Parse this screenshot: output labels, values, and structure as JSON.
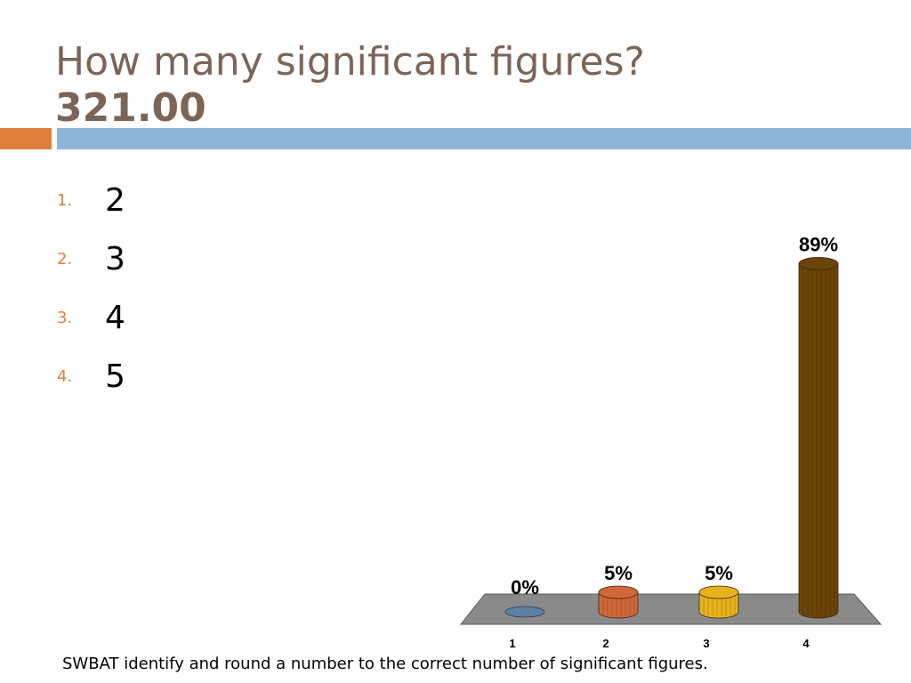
{
  "slide": {
    "title_line1": "How many significant figures?",
    "title_line2": "321.00",
    "options": [
      {
        "num": "1.",
        "value": "2"
      },
      {
        "num": "2.",
        "value": "3"
      },
      {
        "num": "3.",
        "value": "4"
      },
      {
        "num": "4.",
        "value": "5"
      }
    ],
    "footer": "SWBAT identify and round a number to the correct number of significant figures."
  },
  "colors": {
    "title": "#7a6557",
    "accent_orange": "#e07f3c",
    "accent_blue": "#8fb5d6",
    "bar1": "#5d7fa3",
    "bar2": "#d0673a",
    "bar3": "#e8b21c",
    "bar4": "#6b4408",
    "floor": "#8a8a8a"
  },
  "chart_data": {
    "type": "bar",
    "categories": [
      "1",
      "2",
      "3",
      "4"
    ],
    "values": [
      0,
      5,
      5,
      89
    ],
    "labels": [
      "0%",
      "5%",
      "5%",
      "89%"
    ],
    "ylim": [
      0,
      100
    ],
    "title": "",
    "xlabel": "",
    "ylabel": "",
    "grid": false
  }
}
